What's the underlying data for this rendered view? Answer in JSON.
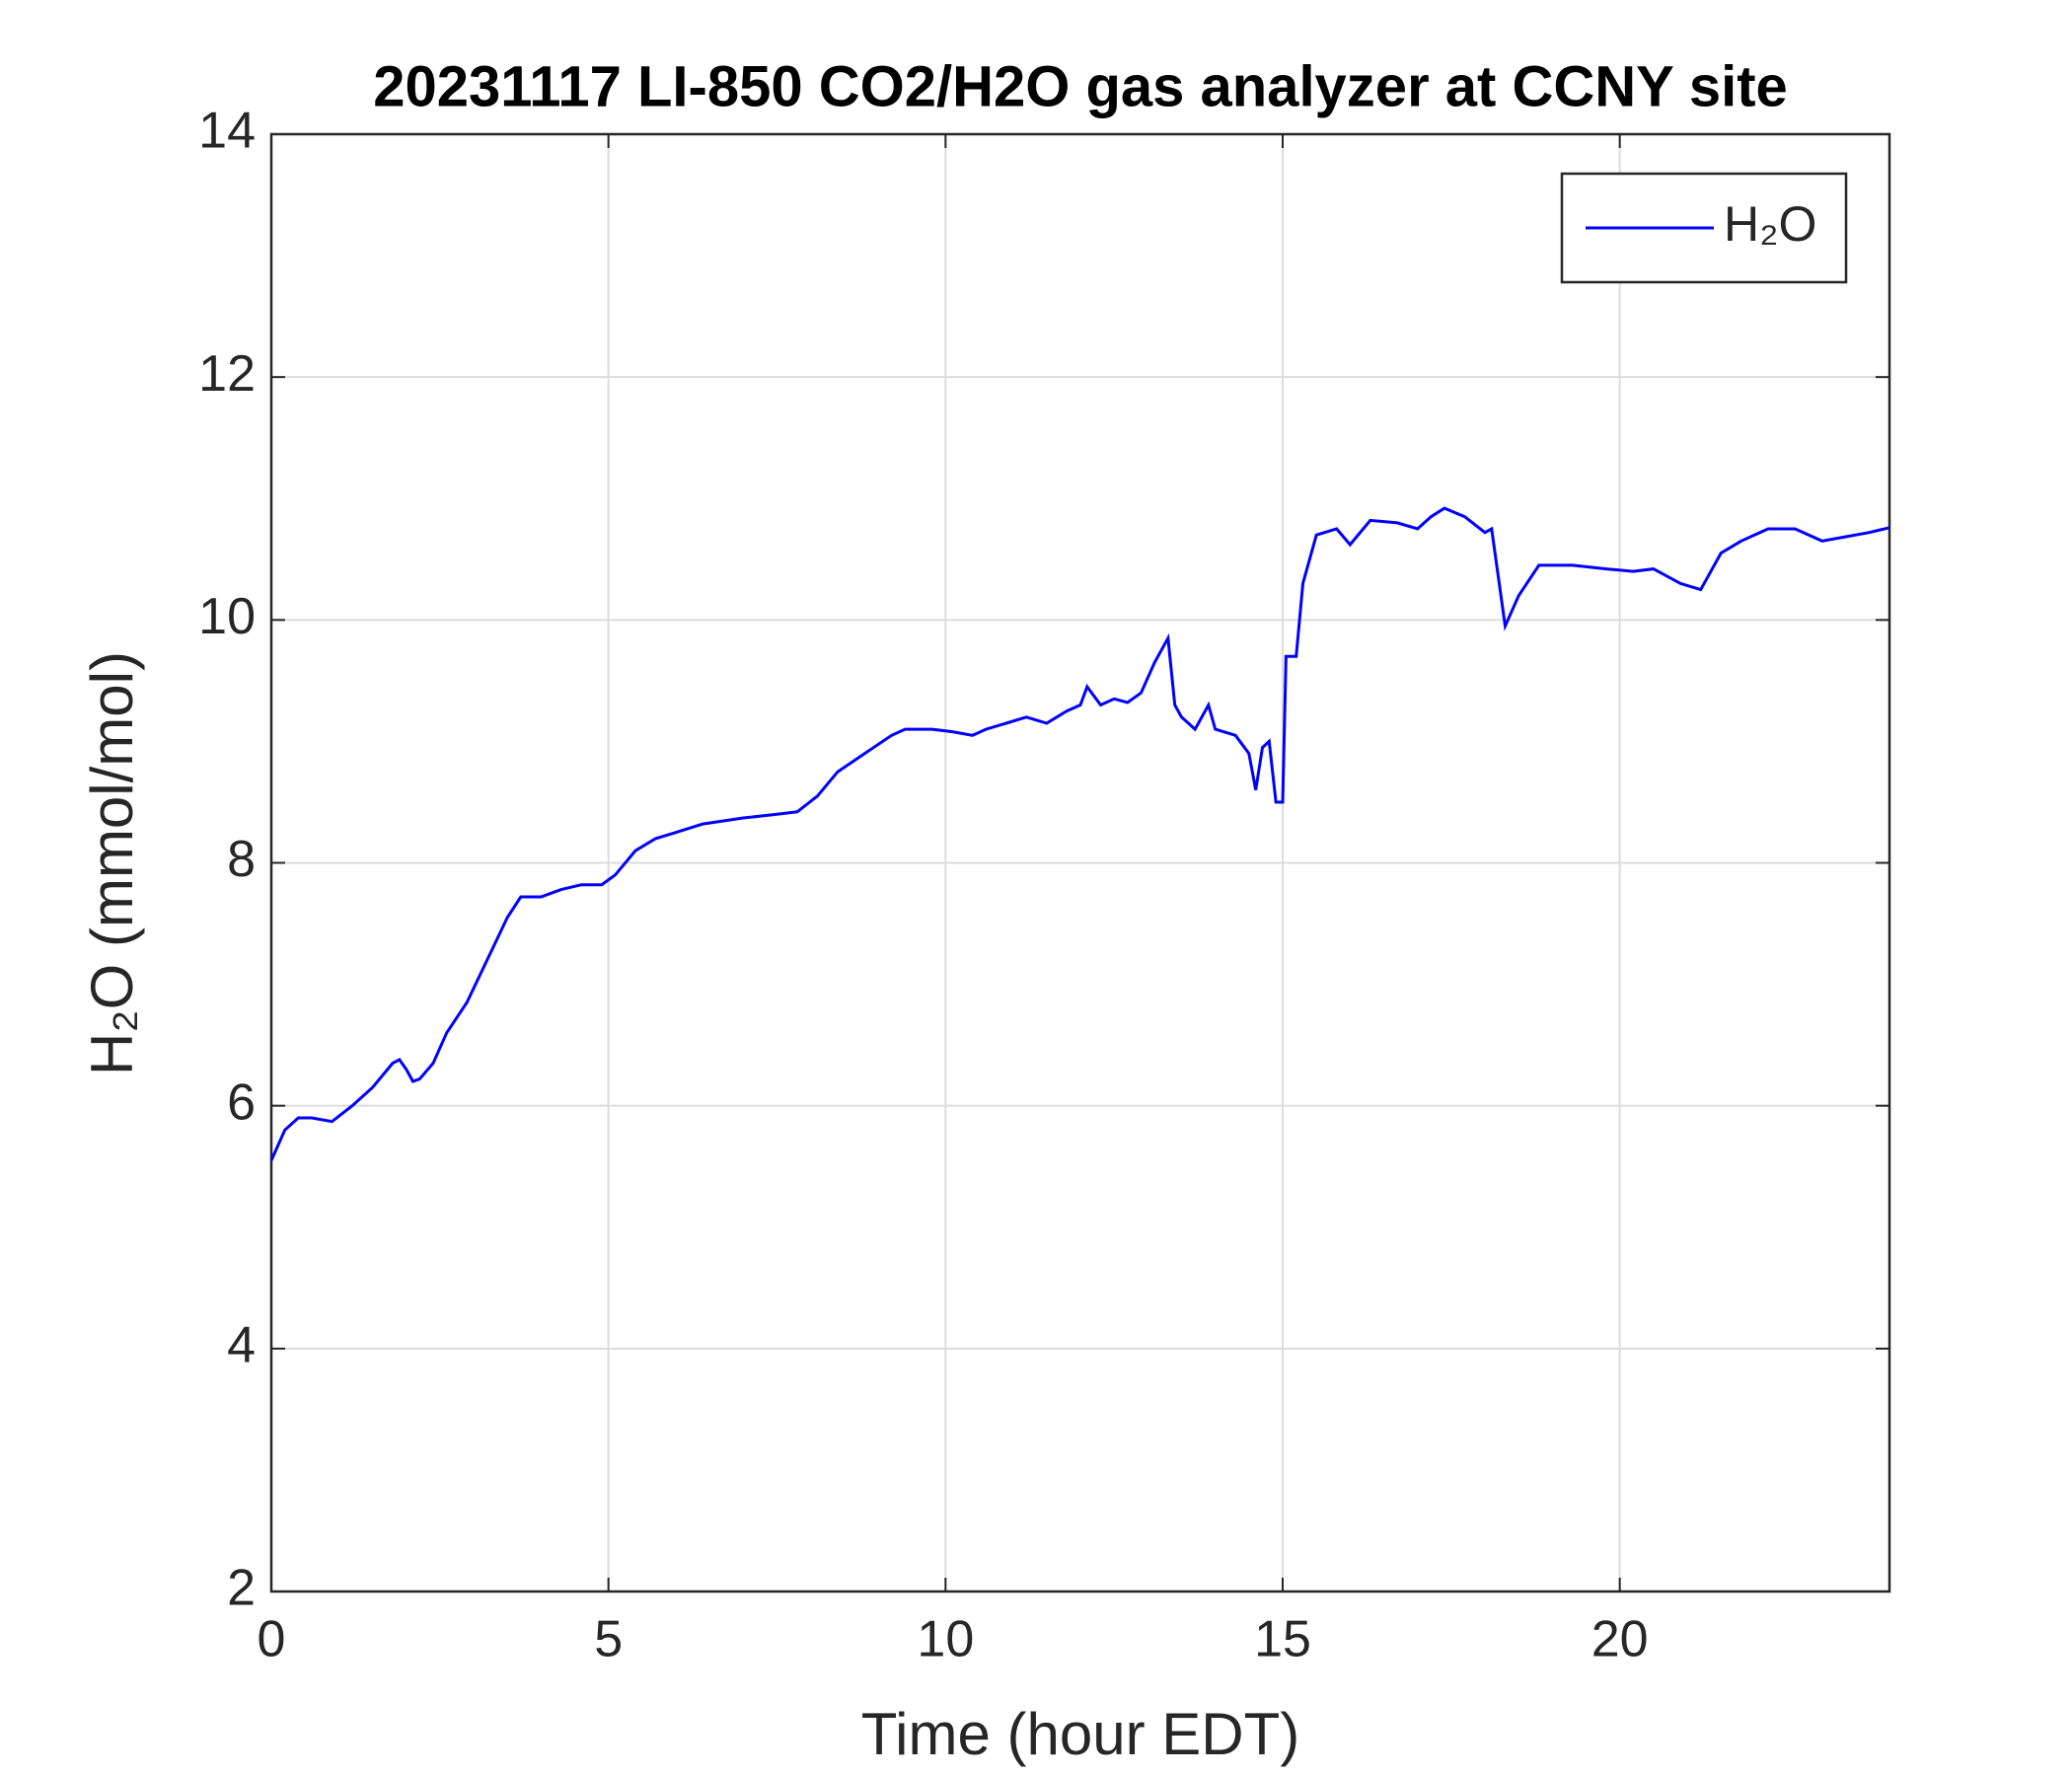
{
  "chart_data": {
    "type": "line",
    "title": "20231117 LI-850 CO2/H2O gas analyzer at CCNY site",
    "x_label": "Time (hour EDT)",
    "y_label": "H₂O (mmol/mol)",
    "x": [
      0,
      0.2,
      0.4,
      0.6,
      0.9,
      1.2,
      1.5,
      1.8,
      1.9,
      2.0,
      2.1,
      2.2,
      2.4,
      2.6,
      2.9,
      3.2,
      3.5,
      3.7,
      4.0,
      4.3,
      4.6,
      4.9,
      5.1,
      5.4,
      5.7,
      6.0,
      6.4,
      7.0,
      7.5,
      7.8,
      8.1,
      8.4,
      8.8,
      9.2,
      9.4,
      9.8,
      10.1,
      10.4,
      10.6,
      10.9,
      11.2,
      11.5,
      11.8,
      12.0,
      12.1,
      12.3,
      12.5,
      12.7,
      12.9,
      13.1,
      13.3,
      13.4,
      13.5,
      13.7,
      13.9,
      14.0,
      14.3,
      14.5,
      14.6,
      14.7,
      14.8,
      14.9,
      15.0,
      15.05,
      15.2,
      15.3,
      15.5,
      15.8,
      16.0,
      16.3,
      16.7,
      17.0,
      17.2,
      17.4,
      17.7,
      18.0,
      18.1,
      18.3,
      18.5,
      18.8,
      19.3,
      19.8,
      20.2,
      20.5,
      20.9,
      21.2,
      21.5,
      21.8,
      22.2,
      22.6,
      23.0,
      23.3,
      23.7,
      24.0
    ],
    "series": [
      {
        "name": "H₂O",
        "color": "#0000ff",
        "values": [
          5.55,
          5.8,
          5.9,
          5.9,
          5.87,
          6.0,
          6.15,
          6.35,
          6.38,
          6.3,
          6.2,
          6.22,
          6.35,
          6.6,
          6.85,
          7.2,
          7.55,
          7.72,
          7.72,
          7.78,
          7.82,
          7.82,
          7.9,
          8.1,
          8.2,
          8.25,
          8.32,
          8.37,
          8.4,
          8.42,
          8.55,
          8.75,
          8.9,
          9.05,
          9.1,
          9.1,
          9.08,
          9.05,
          9.1,
          9.15,
          9.2,
          9.15,
          9.25,
          9.3,
          9.45,
          9.3,
          9.35,
          9.32,
          9.4,
          9.65,
          9.85,
          9.3,
          9.2,
          9.1,
          9.3,
          9.1,
          9.05,
          8.9,
          8.6,
          8.95,
          9.0,
          8.5,
          8.5,
          9.7,
          9.7,
          10.3,
          10.7,
          10.75,
          10.62,
          10.82,
          10.8,
          10.75,
          10.85,
          10.92,
          10.85,
          10.72,
          10.75,
          9.95,
          10.2,
          10.45,
          10.45,
          10.42,
          10.4,
          10.42,
          10.3,
          10.25,
          10.55,
          10.65,
          10.75,
          10.75,
          10.65,
          10.68,
          10.72,
          10.76
        ]
      }
    ],
    "xlim": [
      0,
      24
    ],
    "xticks": [
      0,
      5,
      10,
      15,
      20
    ],
    "ylim": [
      2,
      14
    ],
    "yticks": [
      2,
      4,
      6,
      8,
      10,
      12,
      14
    ],
    "grid": true,
    "legend": "northeast"
  }
}
